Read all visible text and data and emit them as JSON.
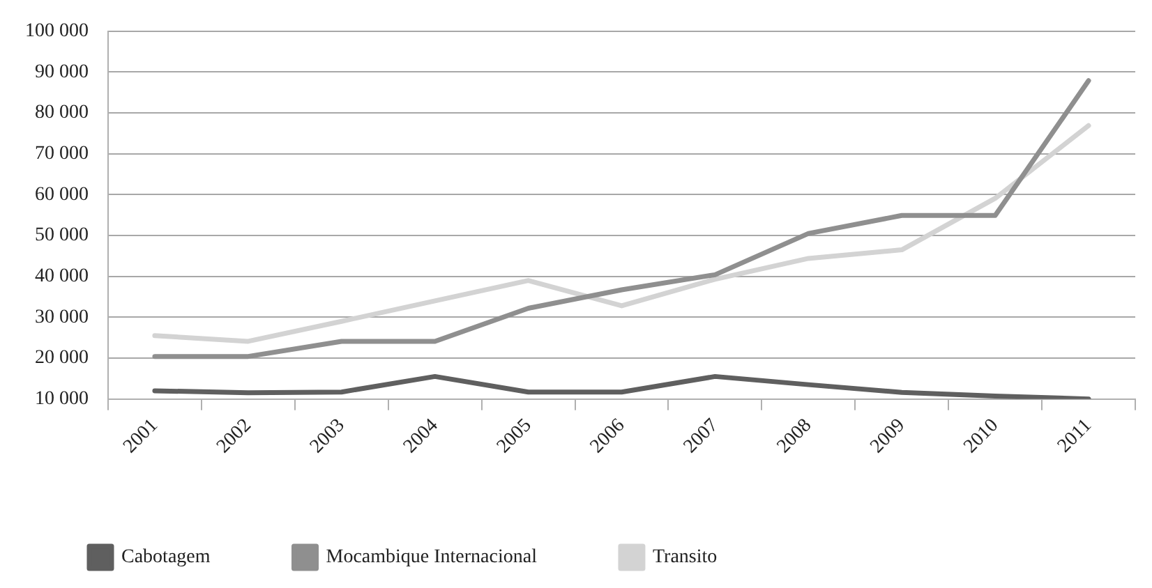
{
  "chart_data": {
    "type": "line",
    "categories": [
      "2001",
      "2002",
      "2003",
      "2004",
      "2005",
      "2006",
      "2007",
      "2008",
      "2009",
      "2010",
      "2011"
    ],
    "series": [
      {
        "name": "Cabotagem",
        "color": "#5f5f5f",
        "values": [
          12000,
          11500,
          11700,
          15500,
          11700,
          11700,
          15500,
          13500,
          11600,
          10700,
          10000
        ]
      },
      {
        "name": "Mocambique Internacional",
        "color": "#8f8f8f",
        "values": [
          20400,
          20400,
          24100,
          24100,
          32200,
          36700,
          40400,
          50500,
          54900,
          54900,
          87900
        ]
      },
      {
        "name": "Transito",
        "color": "#d3d3d3",
        "values": [
          25500,
          24100,
          29000,
          34000,
          39000,
          32800,
          39300,
          44400,
          46500,
          59100,
          76900
        ]
      }
    ],
    "ylim": [
      10000,
      100000
    ],
    "yticks": [
      {
        "value": 10000,
        "label": "10 000"
      },
      {
        "value": 20000,
        "label": "20 000"
      },
      {
        "value": 30000,
        "label": "30 000"
      },
      {
        "value": 40000,
        "label": "40 000"
      },
      {
        "value": 50000,
        "label": "50 000"
      },
      {
        "value": 60000,
        "label": "60 000"
      },
      {
        "value": 70000,
        "label": "70 000"
      },
      {
        "value": 80000,
        "label": "80 000"
      },
      {
        "value": 90000,
        "label": "90 000"
      },
      {
        "value": 100000,
        "label": "100 000"
      }
    ],
    "grid": "y",
    "legend": "bottom",
    "marker": "none",
    "line_style": "solid"
  }
}
